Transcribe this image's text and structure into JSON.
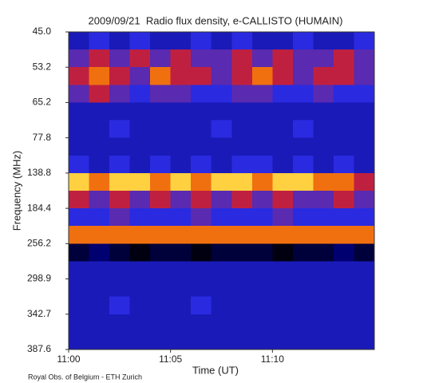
{
  "chart_data": {
    "type": "heatmap",
    "title": "2009/09/21  Radio flux density, e-CALLISTO (HUMAIN)",
    "x_label": "Time (UT)",
    "y_label": "Frequency (MHz)",
    "footnote": "Royal Obs. of Belgium - ETH Zurich",
    "categories": [
      "11:00",
      null,
      null,
      null,
      null,
      "11:05",
      null,
      null,
      null,
      null,
      "11:10",
      null,
      null,
      null,
      null
    ],
    "yticks": [
      {
        "value": 45,
        "label": "45.0"
      },
      {
        "value": 53.2,
        "label": "53.2"
      },
      {
        "value": 65.2,
        "label": "65.2"
      },
      {
        "value": 77.8,
        "label": "77.8"
      },
      {
        "value": 138.8,
        "label": "138.8"
      },
      {
        "value": 184.4,
        "label": "184.4"
      },
      {
        "value": 256.2,
        "label": "256.2"
      },
      {
        "value": 298.9,
        "label": "298.9"
      },
      {
        "value": 342.7,
        "label": "342.7"
      },
      {
        "value": 387.6,
        "label": "387.6"
      }
    ],
    "colors": [
      "#000010",
      "#00003a",
      "#000070",
      "#1a1ab8",
      "#2a2ae0",
      "#5a2ab0",
      "#c02040",
      "#f07010",
      "#ffd040",
      "#ffffff"
    ],
    "z": [
      [
        3,
        4,
        3,
        4,
        3,
        3,
        4,
        3,
        4,
        3,
        3,
        4,
        3,
        3,
        4
      ],
      [
        5,
        6,
        5,
        6,
        5,
        6,
        5,
        5,
        6,
        5,
        6,
        5,
        5,
        6,
        5
      ],
      [
        6,
        7,
        6,
        5,
        7,
        6,
        6,
        5,
        6,
        7,
        6,
        5,
        6,
        6,
        5
      ],
      [
        5,
        6,
        5,
        4,
        5,
        5,
        4,
        4,
        5,
        5,
        4,
        4,
        5,
        4,
        4
      ],
      [
        3,
        3,
        3,
        3,
        3,
        3,
        3,
        3,
        3,
        3,
        3,
        3,
        3,
        3,
        3
      ],
      [
        3,
        3,
        4,
        3,
        3,
        3,
        3,
        4,
        3,
        3,
        3,
        4,
        3,
        3,
        3
      ],
      [
        3,
        3,
        3,
        3,
        3,
        3,
        3,
        3,
        3,
        3,
        3,
        3,
        3,
        3,
        3
      ],
      [
        4,
        3,
        4,
        3,
        4,
        3,
        4,
        3,
        4,
        4,
        3,
        4,
        3,
        4,
        3
      ],
      [
        8,
        7,
        8,
        8,
        7,
        8,
        7,
        8,
        8,
        7,
        8,
        8,
        7,
        7,
        6
      ],
      [
        6,
        5,
        6,
        5,
        6,
        5,
        6,
        5,
        6,
        5,
        6,
        5,
        5,
        6,
        5
      ],
      [
        4,
        4,
        5,
        4,
        4,
        4,
        5,
        4,
        4,
        4,
        5,
        4,
        4,
        4,
        4
      ],
      [
        7,
        7,
        7,
        7,
        7,
        7,
        7,
        7,
        7,
        7,
        7,
        7,
        7,
        7,
        7
      ],
      [
        1,
        2,
        1,
        0,
        1,
        1,
        0,
        1,
        1,
        1,
        0,
        1,
        1,
        2,
        1
      ],
      [
        3,
        3,
        3,
        3,
        3,
        3,
        3,
        3,
        3,
        3,
        3,
        3,
        3,
        3,
        3
      ],
      [
        3,
        3,
        3,
        3,
        3,
        3,
        3,
        3,
        3,
        3,
        3,
        3,
        3,
        3,
        3
      ],
      [
        3,
        3,
        4,
        3,
        3,
        3,
        4,
        3,
        3,
        3,
        3,
        3,
        3,
        3,
        3
      ],
      [
        3,
        3,
        3,
        3,
        3,
        3,
        3,
        3,
        3,
        3,
        3,
        3,
        3,
        3,
        3
      ],
      [
        3,
        3,
        3,
        3,
        3,
        3,
        3,
        3,
        3,
        3,
        3,
        3,
        3,
        3,
        3
      ]
    ]
  }
}
